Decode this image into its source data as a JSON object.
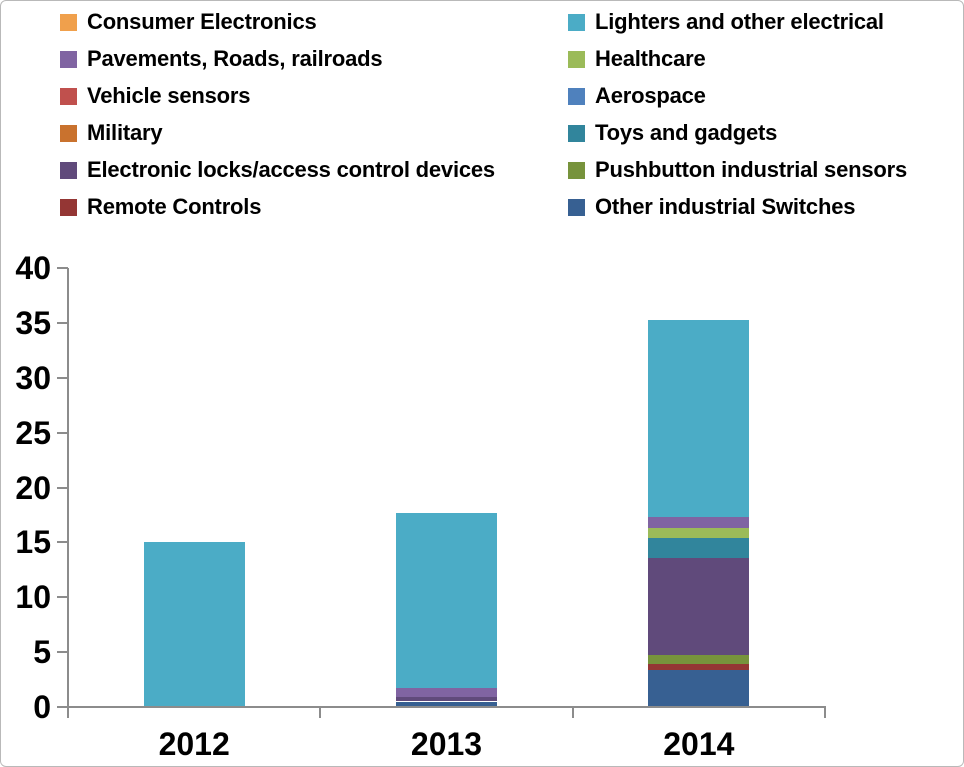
{
  "chart_data": {
    "type": "bar",
    "stacked": true,
    "title": "",
    "xlabel": "",
    "ylabel": "",
    "categories": [
      "2012",
      "2013",
      "2014"
    ],
    "series": [
      {
        "name": "Consumer Electronics",
        "color": "#F0A04C",
        "values": [
          0,
          0,
          0
        ]
      },
      {
        "name": "Lighters and other electrical",
        "color": "#4BACC6",
        "values": [
          15,
          16,
          18
        ]
      },
      {
        "name": "Pavements, Roads, railroads",
        "color": "#8064A2",
        "values": [
          0,
          0.8,
          1
        ]
      },
      {
        "name": "Healthcare",
        "color": "#9BBB59",
        "values": [
          0,
          0,
          0.9
        ]
      },
      {
        "name": "Vehicle sensors",
        "color": "#C0504D",
        "values": [
          0,
          0,
          0
        ]
      },
      {
        "name": "Aerospace",
        "color": "#4F81BD",
        "values": [
          0,
          0,
          0
        ]
      },
      {
        "name": "Military",
        "color": "#C9722E",
        "values": [
          0,
          0,
          0
        ]
      },
      {
        "name": "Toys and gadgets",
        "color": "#31859C",
        "values": [
          0,
          0,
          1.8
        ]
      },
      {
        "name": "Electronic locks/access control devices",
        "color": "#604A7B",
        "values": [
          0,
          0.4,
          8.9
        ]
      },
      {
        "name": "Pushbutton industrial sensors",
        "color": "#77933C",
        "values": [
          0,
          0,
          0.8
        ]
      },
      {
        "name": "Remote Controls",
        "color": "#943634",
        "values": [
          0,
          0,
          0.5
        ]
      },
      {
        "name": "Other industrial Switches",
        "color": "#376092",
        "values": [
          0,
          0.5,
          3.4
        ]
      }
    ],
    "stack_order_bottom_up": [
      "Other industrial Switches",
      "Remote Controls",
      "Pushbutton industrial sensors",
      "Electronic locks/access control devices",
      "Toys and gadgets",
      "Military",
      "Aerospace",
      "Vehicle sensors",
      "Healthcare",
      "Pavements, Roads, railroads",
      "Lighters and other electrical",
      "Consumer Electronics"
    ],
    "category_totals": [
      15.0,
      17.7,
      35.3
    ],
    "ylim": [
      0,
      40
    ],
    "yticks": [
      0,
      5,
      10,
      15,
      20,
      25,
      30,
      35,
      40
    ],
    "grid": false,
    "legend_position": "top",
    "legend_columns": [
      [
        "Consumer Electronics",
        "Pavements, Roads, railroads",
        "Vehicle sensors",
        "Military",
        "Electronic locks/access control devices",
        "Remote Controls"
      ],
      [
        "Lighters and other electrical",
        "Healthcare",
        "Aerospace",
        "Toys and gadgets",
        "Pushbutton industrial sensors",
        "Other industrial Switches"
      ]
    ],
    "axis_color": "#8C8C8C",
    "text_color": "#000000"
  }
}
